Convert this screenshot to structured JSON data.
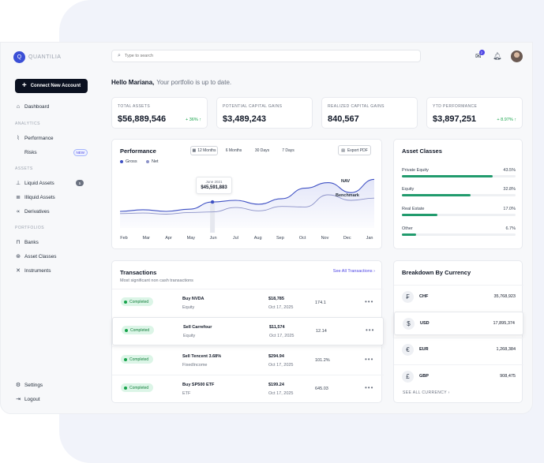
{
  "app": {
    "logo_text": "QUANTILIA",
    "logo_mark": "Q"
  },
  "sidebar": {
    "connect_label": "Connect New Account",
    "nav": [
      {
        "label": "Dashboard",
        "icon": "home-icon",
        "glyph": "⌂"
      }
    ],
    "sections": {
      "analytics": "ANALYTICS",
      "assets": "ASSETS",
      "portfolios": "PORTFOLIOS"
    },
    "analytics": [
      {
        "label": "Performance",
        "icon": "chart-icon",
        "glyph": "⌇"
      },
      {
        "label": "Risks",
        "badge": "NEW"
      }
    ],
    "assets": [
      {
        "label": "Liquid Assets",
        "icon": "drop-icon",
        "glyph": "⊥",
        "count": "5"
      },
      {
        "label": "Illiquid Assets",
        "icon": "stack-icon",
        "glyph": "≣"
      },
      {
        "label": "Derivatives",
        "icon": "nodes-icon",
        "glyph": "∝"
      }
    ],
    "portfolios": [
      {
        "label": "Banks",
        "icon": "bank-icon",
        "glyph": "⊓"
      },
      {
        "label": "Asset Classes",
        "icon": "classes-icon",
        "glyph": "⊛"
      },
      {
        "label": "Instruments",
        "icon": "tools-icon",
        "glyph": "✕"
      }
    ],
    "bottom": [
      {
        "label": "Settings",
        "icon": "gear-icon",
        "glyph": "⚙"
      },
      {
        "label": "Logout",
        "icon": "logout-icon",
        "glyph": "⇥"
      }
    ]
  },
  "topbar": {
    "search_placeholder": "Type to search",
    "notification_count": "2"
  },
  "greeting": {
    "name": "Hello Mariana,",
    "text": "Your portfolio is up to date."
  },
  "kpis": [
    {
      "label": "TOTAL ASSETS",
      "value": "$56,889,546",
      "delta": "+ 36% ↑"
    },
    {
      "label": "POTENTIAL CAPITAL GAINS",
      "value": "$3,489,243",
      "delta": ""
    },
    {
      "label": "REALIZED CAPITAL GAINS",
      "value": "840,567",
      "delta": ""
    },
    {
      "label": "YTD PERFORMANCE",
      "value": "$3,897,251",
      "delta": "+ 8.97% ↑"
    }
  ],
  "performance": {
    "title": "Performance",
    "ranges": [
      "12 Months",
      "6 Months",
      "30 Days",
      "7 Days"
    ],
    "active_range": "12 Months",
    "export_label": "Export PDF",
    "tooltip": {
      "date": "June 2021",
      "value": "$45,591,883"
    },
    "annotations": {
      "nav": "NAV",
      "benchmark": "Benchmark"
    },
    "colors": {
      "gross": "#3f51c4",
      "net": "#8c92c8"
    }
  },
  "chart_data": {
    "type": "line",
    "x": [
      "Feb",
      "Mar",
      "Apr",
      "May",
      "Jun",
      "Jul",
      "Aug",
      "Sep",
      "Oct",
      "Nov",
      "Dec",
      "Jan"
    ],
    "series": [
      {
        "name": "Gross",
        "values": [
          30,
          33,
          30,
          34,
          47,
          50,
          43,
          53,
          72,
          82,
          64,
          88
        ]
      },
      {
        "name": "Net",
        "values": [
          26,
          27,
          25,
          28,
          29,
          37,
          31,
          39,
          38,
          60,
          50,
          54
        ]
      }
    ],
    "ylim": [
      0,
      100
    ],
    "legend": "top-left",
    "grid": false
  },
  "asset_classes": {
    "title": "Asset Classes",
    "items": [
      {
        "label": "Private Equity",
        "pct": "43.5%",
        "value": 43.5
      },
      {
        "label": "Equity",
        "pct": "32.8%",
        "value": 32.8
      },
      {
        "label": "Real Estate",
        "pct": "17.0%",
        "value": 17.0
      },
      {
        "label": "Other",
        "pct": "6.7%",
        "value": 6.7
      }
    ]
  },
  "transactions": {
    "title": "Transactions",
    "subtitle": "Most significant non cash transactions",
    "see_all": "See All Transactions ›",
    "rows": [
      {
        "status": "Completed",
        "name": "Buy NVDA",
        "type": "Equity",
        "amount": "$18,785",
        "date": "Oct 17, 2025",
        "qty": "174.1"
      },
      {
        "status": "Completed",
        "name": "Sell Carrefour",
        "type": "Equity",
        "amount": "$11,574",
        "date": "Oct 17, 2025",
        "qty": "12.14"
      },
      {
        "status": "Completed",
        "name": "Sell Tencent 3.68%",
        "type": "FixedIncome",
        "amount": "$294.94",
        "date": "Oct 17, 2025",
        "qty": "101.2%"
      },
      {
        "status": "Completed",
        "name": "Buy SP500 ETF",
        "type": "ETF",
        "amount": "$199.24",
        "date": "Oct 17, 2025",
        "qty": "645.03"
      }
    ]
  },
  "currency": {
    "title": "Breakdown By Currency",
    "see_all": "SEE ALL CURRENCY  ›",
    "rows": [
      {
        "code": "CHF",
        "symbol": "₣",
        "value": "35,768,923"
      },
      {
        "code": "USD",
        "symbol": "$",
        "value": "17,895,374"
      },
      {
        "code": "EUR",
        "symbol": "€",
        "value": "1,268,384"
      },
      {
        "code": "GBP",
        "symbol": "£",
        "value": "908,475"
      }
    ]
  }
}
